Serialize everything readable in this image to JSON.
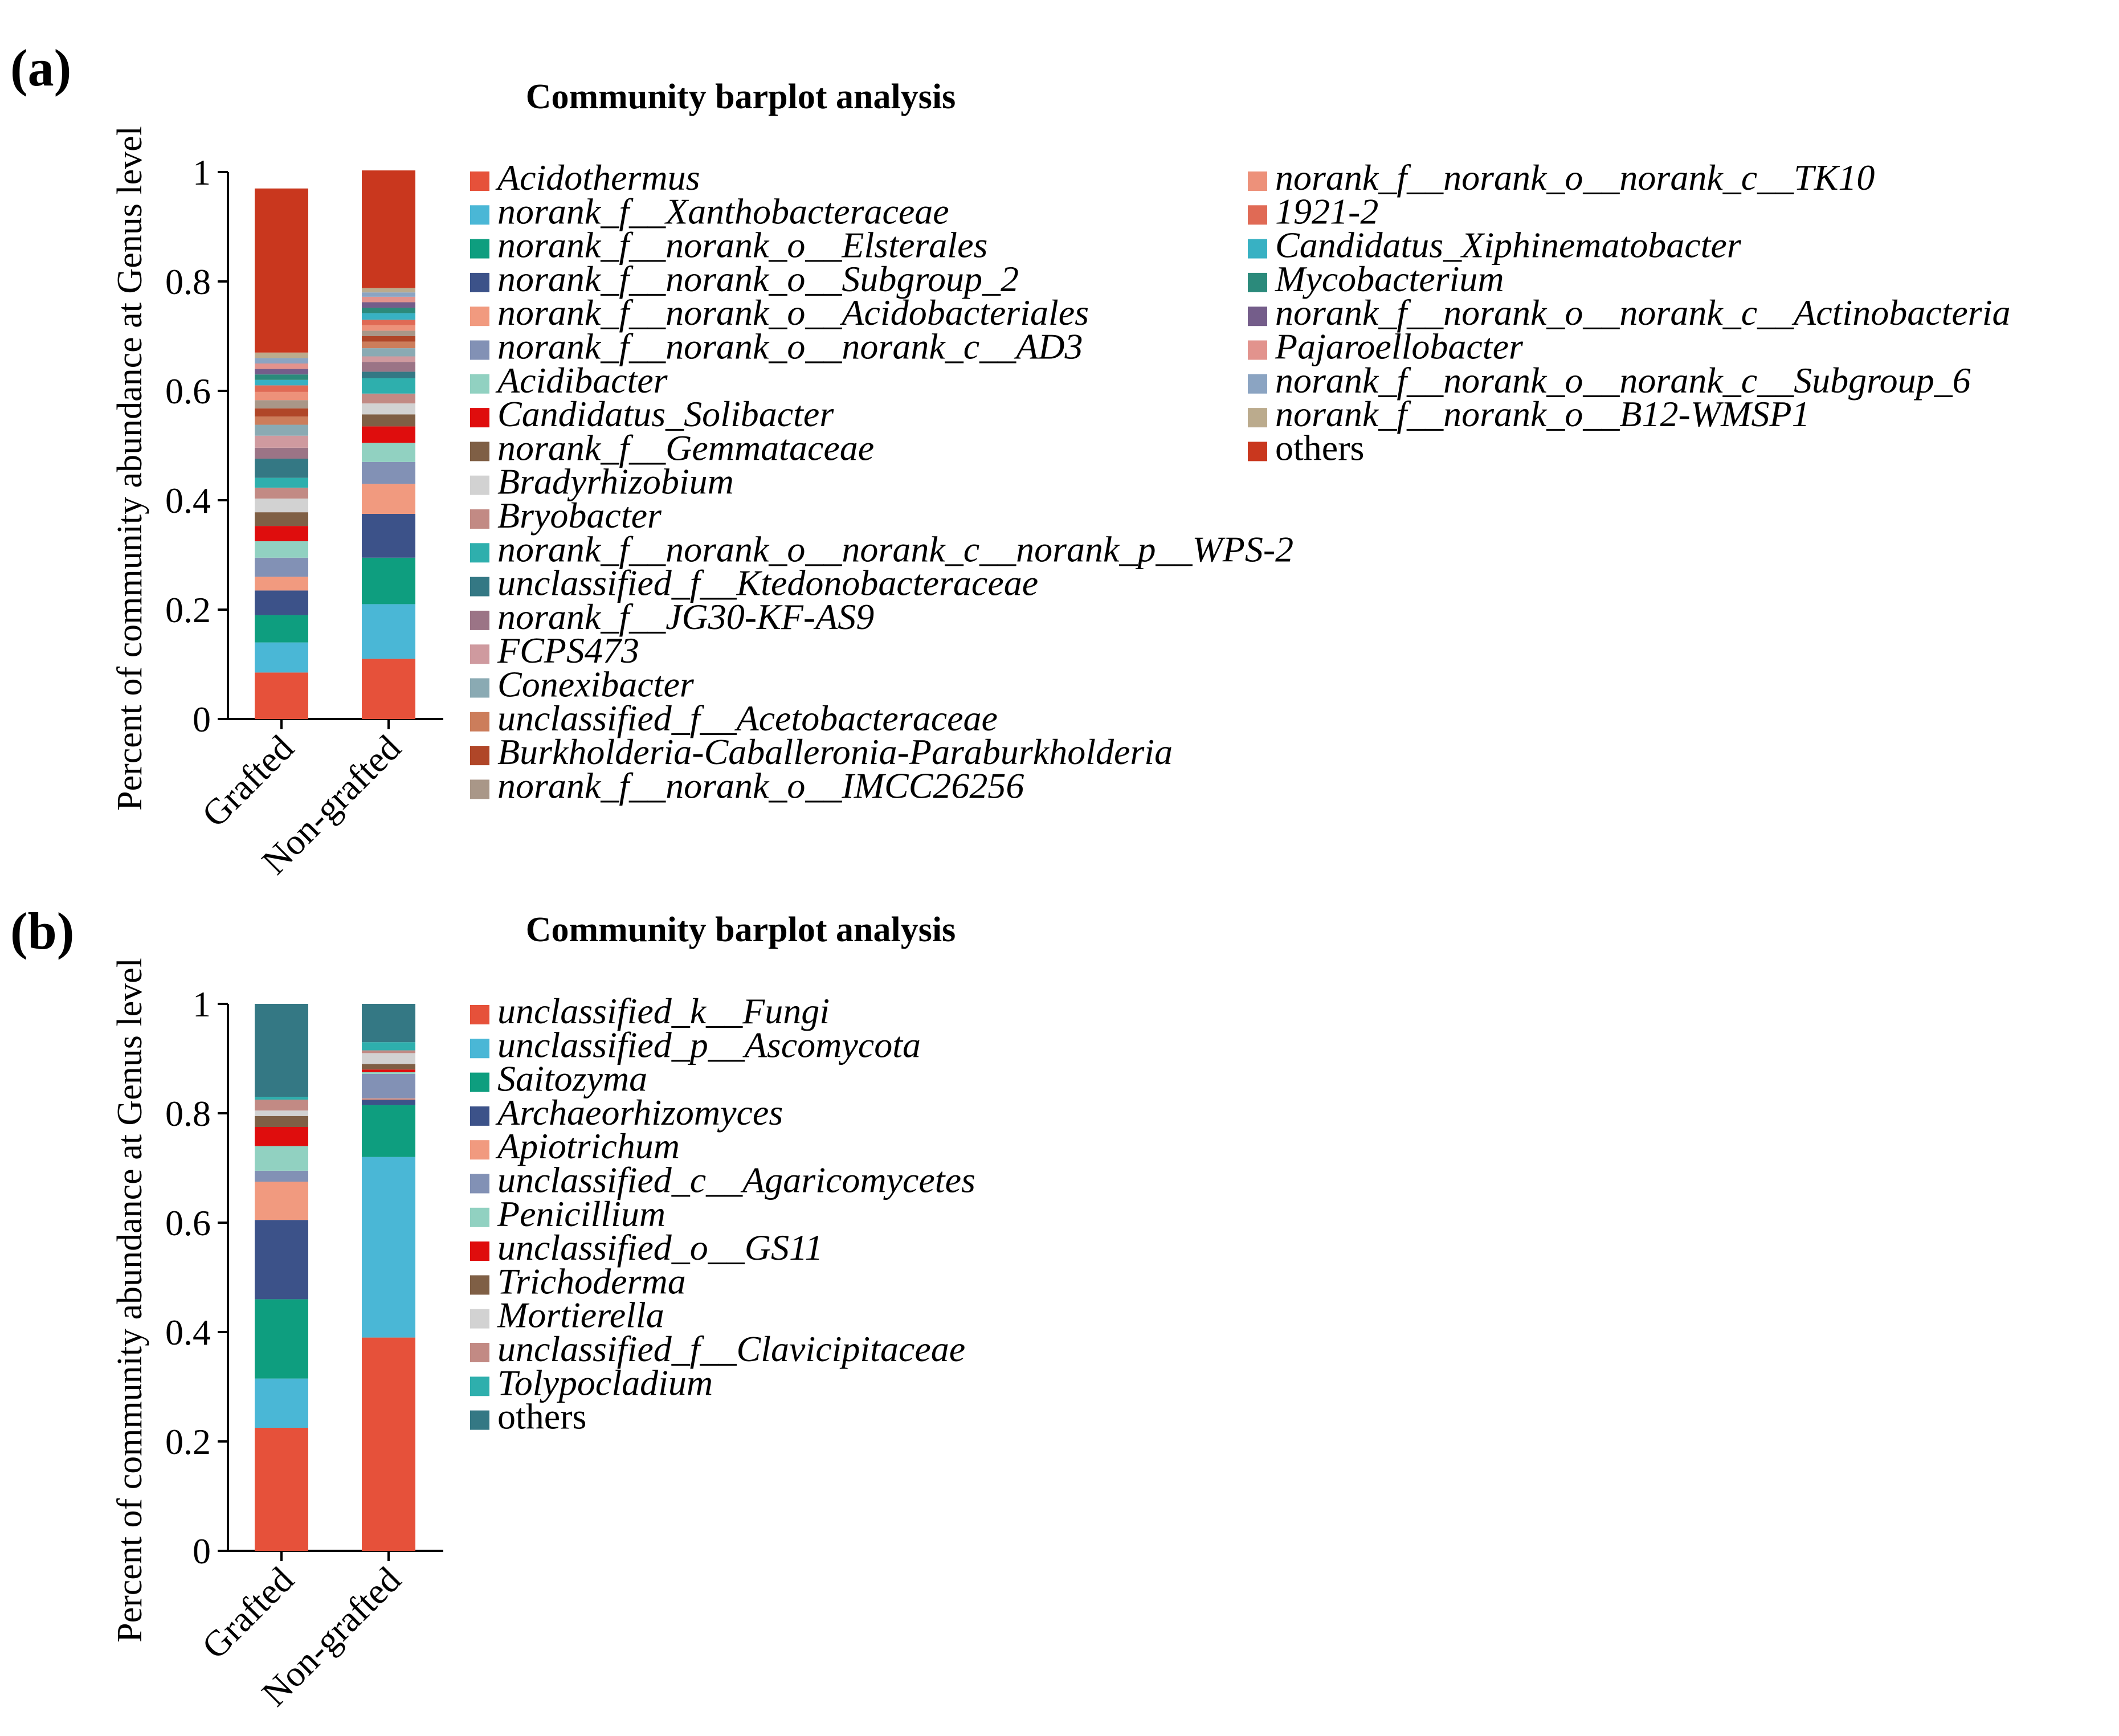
{
  "panels": [
    {
      "label": "(a)",
      "chart_data": {
        "type": "bar",
        "stacked": true,
        "title": "Community barplot analysis",
        "xlabel": "",
        "ylabel": "Percent of community abundance at Genus level",
        "ylim": [
          0,
          1
        ],
        "yticks": [
          "0",
          "0.2",
          "0.4",
          "0.6",
          "0.8",
          "1"
        ],
        "categories": [
          "Grafted",
          "Non-grafted"
        ],
        "series": [
          {
            "name": "Acidothermus",
            "color": "#e6513a",
            "values": [
              0.085,
              0.11
            ]
          },
          {
            "name": "norank_f__Xanthobacteraceae",
            "color": "#4ab7d6",
            "values": [
              0.055,
              0.1
            ]
          },
          {
            "name": "norank_f__norank_o__Elsterales",
            "color": "#0e9e7f",
            "values": [
              0.05,
              0.085
            ]
          },
          {
            "name": "norank_f__norank_o__Subgroup_2",
            "color": "#3c5289",
            "values": [
              0.045,
              0.08
            ]
          },
          {
            "name": "norank_f__norank_o__Acidobacteriales",
            "color": "#f19a7f",
            "values": [
              0.025,
              0.055
            ]
          },
          {
            "name": "norank_f__norank_o__norank_c__AD3",
            "color": "#8291b5",
            "values": [
              0.035,
              0.04
            ]
          },
          {
            "name": "Acidibacter",
            "color": "#91d1c1",
            "values": [
              0.03,
              0.035
            ]
          },
          {
            "name": "Candidatus_Solibacter",
            "color": "#df0d0d",
            "values": [
              0.028,
              0.03
            ]
          },
          {
            "name": "norank_f__Gemmataceae",
            "color": "#7f5f45",
            "values": [
              0.025,
              0.022
            ]
          },
          {
            "name": "Bradyrhizobium",
            "color": "#d2d2d2",
            "values": [
              0.025,
              0.02
            ]
          },
          {
            "name": "Bryobacter",
            "color": "#c28a84",
            "values": [
              0.02,
              0.018
            ]
          },
          {
            "name": "norank_f__norank_o__norank_c__norank_p__WPS-2",
            "color": "#2eafad",
            "values": [
              0.018,
              0.028
            ]
          },
          {
            "name": "unclassified_f__Ktedonobacteraceae",
            "color": "#347884",
            "values": [
              0.035,
              0.012
            ]
          },
          {
            "name": "norank_f__JG30-KF-AS9",
            "color": "#9b7486",
            "values": [
              0.02,
              0.018
            ]
          },
          {
            "name": "FCPS473",
            "color": "#cf9a9f",
            "values": [
              0.022,
              0.01
            ]
          },
          {
            "name": "Conexibacter",
            "color": "#8aaab3",
            "values": [
              0.02,
              0.015
            ]
          },
          {
            "name": "unclassified_f__Acetobacteraceae",
            "color": "#cc7d5b",
            "values": [
              0.015,
              0.012
            ]
          },
          {
            "name": "Burkholderia-Caballeronia-Paraburkholderia",
            "color": "#b04628",
            "values": [
              0.015,
              0.01
            ]
          },
          {
            "name": "norank_f__norank_o__IMCC26256",
            "color": "#a99788",
            "values": [
              0.015,
              0.01
            ]
          },
          {
            "name": "norank_f__norank_o__norank_c__TK10",
            "color": "#ed917a",
            "values": [
              0.015,
              0.01
            ]
          },
          {
            "name": "1921-2",
            "color": "#e06a55",
            "values": [
              0.012,
              0.01
            ]
          },
          {
            "name": "Candidatus_Xiphinematobacter",
            "color": "#38b1c3",
            "values": [
              0.01,
              0.012
            ]
          },
          {
            "name": "Mycobacterium",
            "color": "#2b8a7b",
            "values": [
              0.01,
              0.01
            ]
          },
          {
            "name": "norank_f__norank_o__norank_c__Actinobacteria",
            "color": "#745d8a",
            "values": [
              0.01,
              0.01
            ]
          },
          {
            "name": "Pajaroellobacter",
            "color": "#e2938d",
            "values": [
              0.01,
              0.01
            ]
          },
          {
            "name": "norank_f__norank_o__norank_c__Subgroup_6",
            "color": "#8ba4c2",
            "values": [
              0.01,
              0.008
            ]
          },
          {
            "name": "norank_f__norank_o__B12-WMSP1",
            "color": "#bbab8d",
            "values": [
              0.01,
              0.008
            ]
          },
          {
            "name": "others",
            "color": "#c9371e",
            "values": [
              0.3,
              0.215
            ]
          }
        ]
      }
    },
    {
      "label": "(b)",
      "chart_data": {
        "type": "bar",
        "stacked": true,
        "title": "Community barplot analysis",
        "xlabel": "",
        "ylabel": "Percent of community abundance at Genus level",
        "ylim": [
          0,
          1
        ],
        "yticks": [
          "0",
          "0.2",
          "0.4",
          "0.6",
          "0.8",
          "1"
        ],
        "categories": [
          "Grafted",
          "Non-grafted"
        ],
        "series": [
          {
            "name": "unclassified_k__Fungi",
            "color": "#e6513a",
            "values": [
              0.225,
              0.39
            ]
          },
          {
            "name": "unclassified_p__Ascomycota",
            "color": "#4ab7d6",
            "values": [
              0.09,
              0.33
            ]
          },
          {
            "name": "Saitozyma",
            "color": "#0e9e7f",
            "values": [
              0.145,
              0.095
            ]
          },
          {
            "name": "Archaeorhizomyces",
            "color": "#3c5289",
            "values": [
              0.145,
              0.01
            ]
          },
          {
            "name": "Apiotrichum",
            "color": "#f19a7f",
            "values": [
              0.07,
              0.002
            ]
          },
          {
            "name": "unclassified_c__Agaricomycetes",
            "color": "#8291b5",
            "values": [
              0.02,
              0.045
            ]
          },
          {
            "name": "Penicillium",
            "color": "#91d1c1",
            "values": [
              0.045,
              0.003
            ]
          },
          {
            "name": "unclassified_o__GS11",
            "color": "#df0d0d",
            "values": [
              0.035,
              0.005
            ]
          },
          {
            "name": "Trichoderma",
            "color": "#7f5f45",
            "values": [
              0.02,
              0.01
            ]
          },
          {
            "name": "Mortierella",
            "color": "#d2d2d2",
            "values": [
              0.01,
              0.02
            ]
          },
          {
            "name": "unclassified_f__Clavicipitaceae",
            "color": "#c28a84",
            "values": [
              0.02,
              0.005
            ]
          },
          {
            "name": "Tolypocladium",
            "color": "#2eafad",
            "values": [
              0.005,
              0.015
            ]
          },
          {
            "name": "others",
            "color": "#347884",
            "values": [
              0.17,
              0.07
            ]
          }
        ]
      }
    }
  ]
}
